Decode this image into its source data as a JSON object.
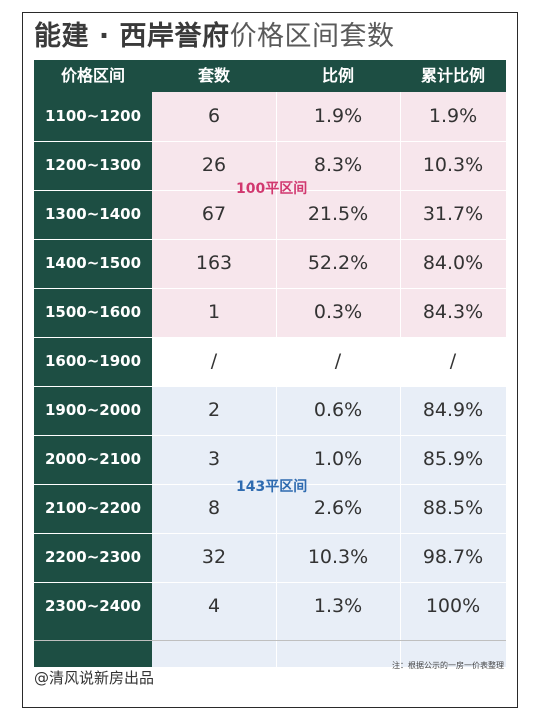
{
  "title": {
    "bold": "能建 · 西岸誉府",
    "rest": "价格区间套数"
  },
  "headers": [
    "价格区间",
    "套数",
    "比例",
    "累计比例"
  ],
  "rows": [
    [
      "1100~1200",
      "6",
      "1.9%",
      "1.9%"
    ],
    [
      "1200~1300",
      "26",
      "8.3%",
      "10.3%"
    ],
    [
      "1300~1400",
      "67",
      "21.5%",
      "31.7%"
    ],
    [
      "1400~1500",
      "163",
      "52.2%",
      "84.0%"
    ],
    [
      "1500~1600",
      "1",
      "0.3%",
      "84.3%"
    ],
    [
      "1600~1900",
      "/",
      "/",
      "/"
    ],
    [
      "1900~2000",
      "2",
      "0.6%",
      "84.9%"
    ],
    [
      "2000~2100",
      "3",
      "1.0%",
      "85.9%"
    ],
    [
      "2100~2200",
      "8",
      "2.6%",
      "88.5%"
    ],
    [
      "2200~2300",
      "32",
      "10.3%",
      "98.7%"
    ],
    [
      "2300~2400",
      "4",
      "1.3%",
      "100%"
    ]
  ],
  "band_labels": {
    "upper": {
      "text": "100平区间",
      "color": "#d1386f"
    },
    "lower": {
      "text": "143平区间",
      "color": "#2f6bb0"
    }
  },
  "colors": {
    "dark_green": "#1d4e43",
    "pink_band": "#f7e6ec",
    "blue_band": "#e8eef7"
  },
  "footer": {
    "credit": "@清风说新房出品",
    "note": "注：根据公示的一房一价表整理"
  }
}
